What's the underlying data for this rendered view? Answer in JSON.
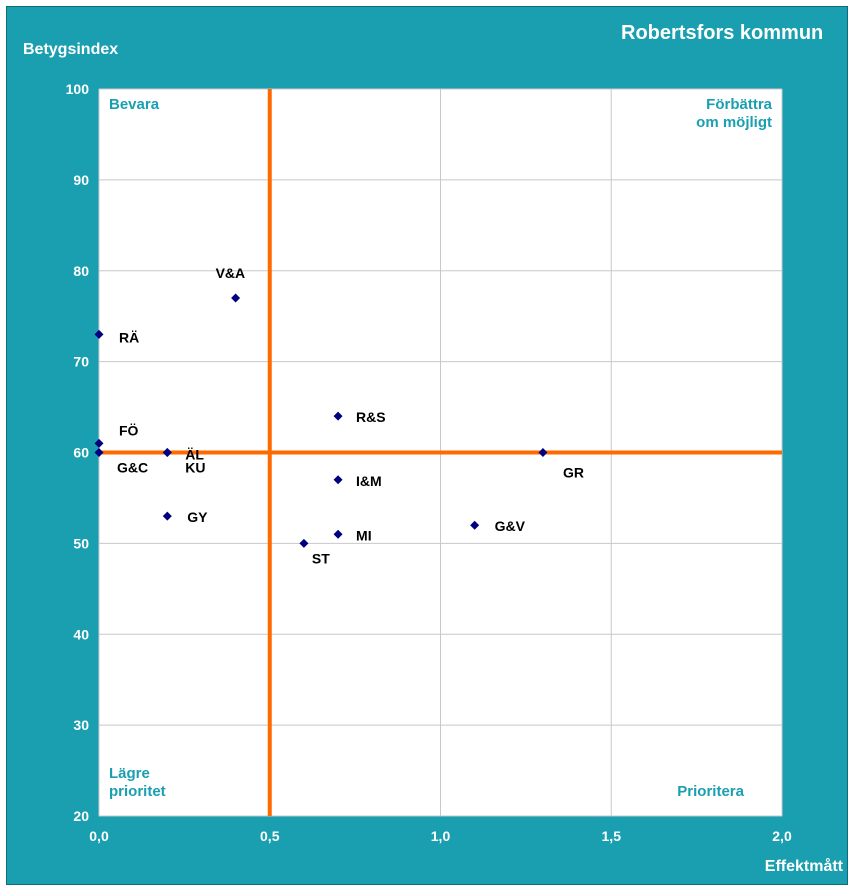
{
  "chart_data": {
    "type": "scatter",
    "title": "Robertsfors kommun",
    "xlabel": "Effektmått",
    "ylabel": "Betygsindex",
    "xlim": [
      0,
      2.0
    ],
    "ylim": [
      20,
      100
    ],
    "x_ticks": [
      "0,0",
      "0,5",
      "1,0",
      "1,5",
      "2,0"
    ],
    "y_ticks": [
      "20",
      "30",
      "40",
      "50",
      "60",
      "70",
      "80",
      "90",
      "100"
    ],
    "grid": true,
    "reference_lines": {
      "x": 0.5,
      "y": 60,
      "color": "#ff6a00"
    },
    "marker_color": "#000080",
    "quadrant_labels": {
      "top_left": "Bevara",
      "top_right": [
        "Förbättra",
        "om möjligt"
      ],
      "bottom_left": [
        "Lägre",
        "prioritet"
      ],
      "bottom_right": "Prioritera"
    },
    "points": [
      {
        "label": "V&A",
        "x": 0.4,
        "y": 77
      },
      {
        "label": "RÄ",
        "x": 0.0,
        "y": 73
      },
      {
        "label": "FÖ",
        "x": 0.0,
        "y": 61
      },
      {
        "label": "G&C",
        "x": 0.0,
        "y": 60
      },
      {
        "label": "ÄL",
        "x": 0.2,
        "y": 60
      },
      {
        "label": "KU",
        "x": 0.2,
        "y": 60
      },
      {
        "label": "GY",
        "x": 0.2,
        "y": 53
      },
      {
        "label": "R&S",
        "x": 0.7,
        "y": 64
      },
      {
        "label": "I&M",
        "x": 0.7,
        "y": 57
      },
      {
        "label": "MI",
        "x": 0.7,
        "y": 51
      },
      {
        "label": "ST",
        "x": 0.6,
        "y": 50
      },
      {
        "label": "GR",
        "x": 1.3,
        "y": 60
      },
      {
        "label": "G&V",
        "x": 1.1,
        "y": 52
      }
    ]
  }
}
